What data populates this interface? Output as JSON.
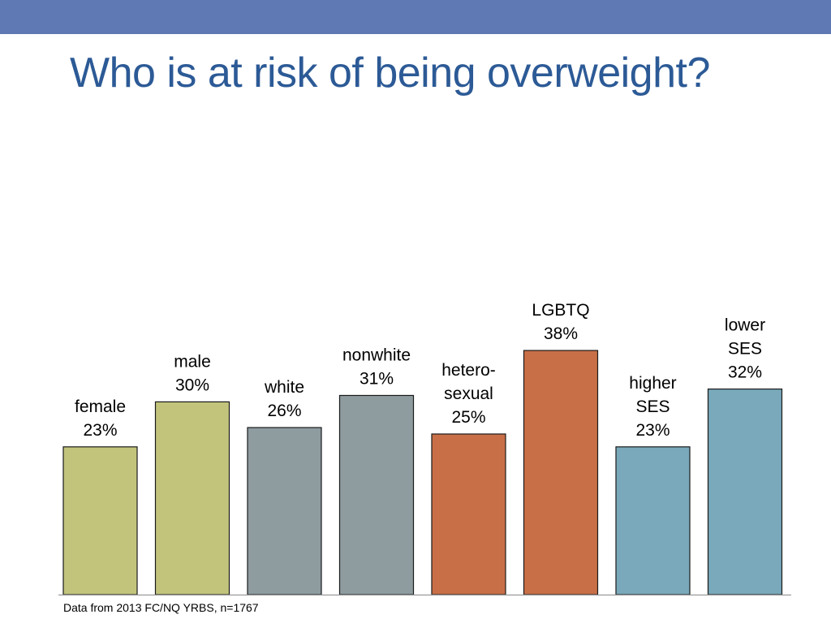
{
  "slide": {
    "title": "Who is at risk of being overweight?",
    "source_note": "Data from 2013 FC/NQ YRBS, n=1767"
  },
  "colors": {
    "top_band": "#5f79b5",
    "title": "#2c5a96",
    "bar_outline": "#1a1a1a",
    "axis": "#9a9a9a",
    "label_text": "#000000"
  },
  "chart_data": {
    "type": "bar",
    "title": "",
    "xlabel": "",
    "ylabel": "",
    "ylim": [
      0,
      40
    ],
    "grid": false,
    "legend": "none",
    "unit": "%",
    "categories": [
      [
        "female"
      ],
      [
        "male"
      ],
      [
        "white"
      ],
      [
        "nonwhite"
      ],
      [
        "hetero-",
        "sexual"
      ],
      [
        "LGBTQ"
      ],
      [
        "higher",
        "SES"
      ],
      [
        "lower",
        "SES"
      ]
    ],
    "values": [
      23,
      30,
      26,
      31,
      25,
      38,
      23,
      32
    ],
    "value_labels": [
      "23%",
      "30%",
      "26%",
      "31%",
      "25%",
      "38%",
      "23%",
      "32%"
    ],
    "bar_colors": [
      "#c2c47c",
      "#c2c47c",
      "#8e9ca0",
      "#8e9ca0",
      "#c86f47",
      "#c86f47",
      "#79a9ba",
      "#79a9ba"
    ]
  }
}
